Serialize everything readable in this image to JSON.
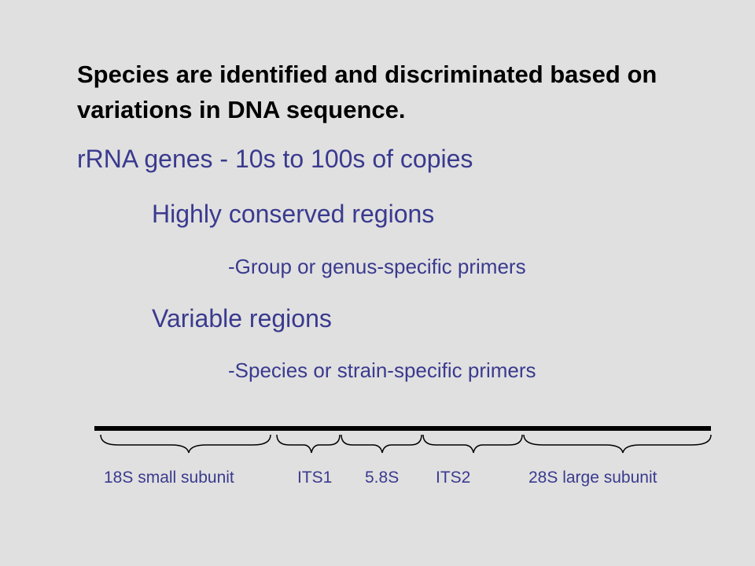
{
  "slide": {
    "title": "Species are identified and discriminated based on variations in DNA sequence.",
    "lines": [
      "rRNA genes - 10s to 100s of copies",
      "Highly conserved regions",
      "-Group or genus-specific primers",
      "Variable regions",
      "-Species or strain-specific primers"
    ]
  },
  "diagram": {
    "segments": [
      {
        "label": "18S small subunit"
      },
      {
        "label": "ITS1"
      },
      {
        "label": "5.8S"
      },
      {
        "label": "ITS2"
      },
      {
        "label": "28S large subunit"
      }
    ]
  },
  "colors": {
    "background": "#e0e0e0",
    "title_text": "#000000",
    "body_text": "#3a3a8f",
    "bar": "#000000"
  }
}
